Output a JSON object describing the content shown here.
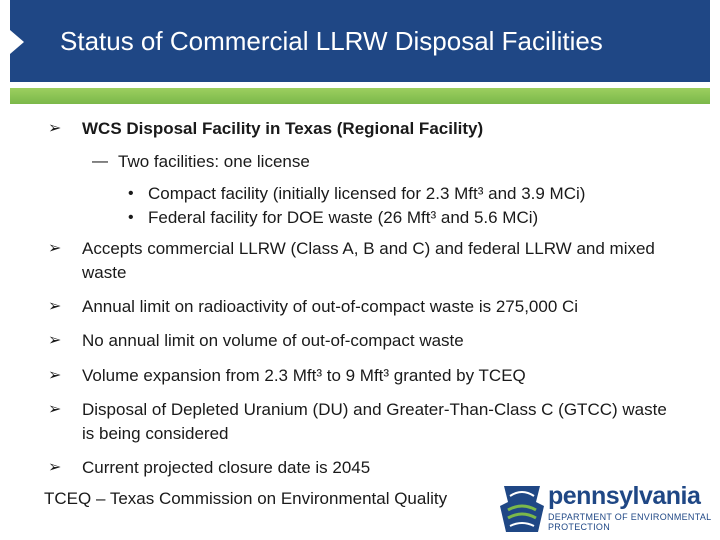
{
  "title": "Status of Commercial LLRW Disposal Facilities",
  "colors": {
    "title_bar": "#1f4785",
    "accent_rule": "#7bb84a"
  },
  "icons": {
    "bullet": "arrowhead-bullet-icon",
    "logo": "pennsylvania-keystone-logo-icon"
  },
  "bullets": {
    "wcs": "WCS Disposal Facility in Texas (Regional Facility)",
    "sub": "Two facilities:  one license",
    "sub_dash": "—",
    "sub_dot": "•",
    "sub_items": [
      "Compact facility (initially licensed for 2.3 Mft³ and 3.9 MCi)",
      "Federal facility for DOE waste (26 Mft³ and 5.6 MCi)"
    ],
    "accepts_line1": "Accepts commercial LLRW (Class A, B and C) and federal LLRW and mixed",
    "accepts_line2": "waste",
    "annual_limit": "Annual limit on radioactivity of out-of-compact waste is 275,000 Ci",
    "no_limit": "No annual limit on volume of out-of-compact waste",
    "expansion": "Volume expansion from 2.3 Mft³ to 9 Mft³ granted by TCEQ",
    "du_line1": "Disposal of Depleted Uranium (DU) and Greater-Than-Class C (GTCC) waste",
    "du_line2": "is being considered",
    "closure": "Current projected closure date is 2045"
  },
  "footer": "TCEQ – Texas Commission on Environmental Quality",
  "logo": {
    "word": "pennsylvania",
    "dept_line1": "DEPARTMENT OF ENVIRONMENTAL",
    "dept_line2": "PROTECTION"
  }
}
